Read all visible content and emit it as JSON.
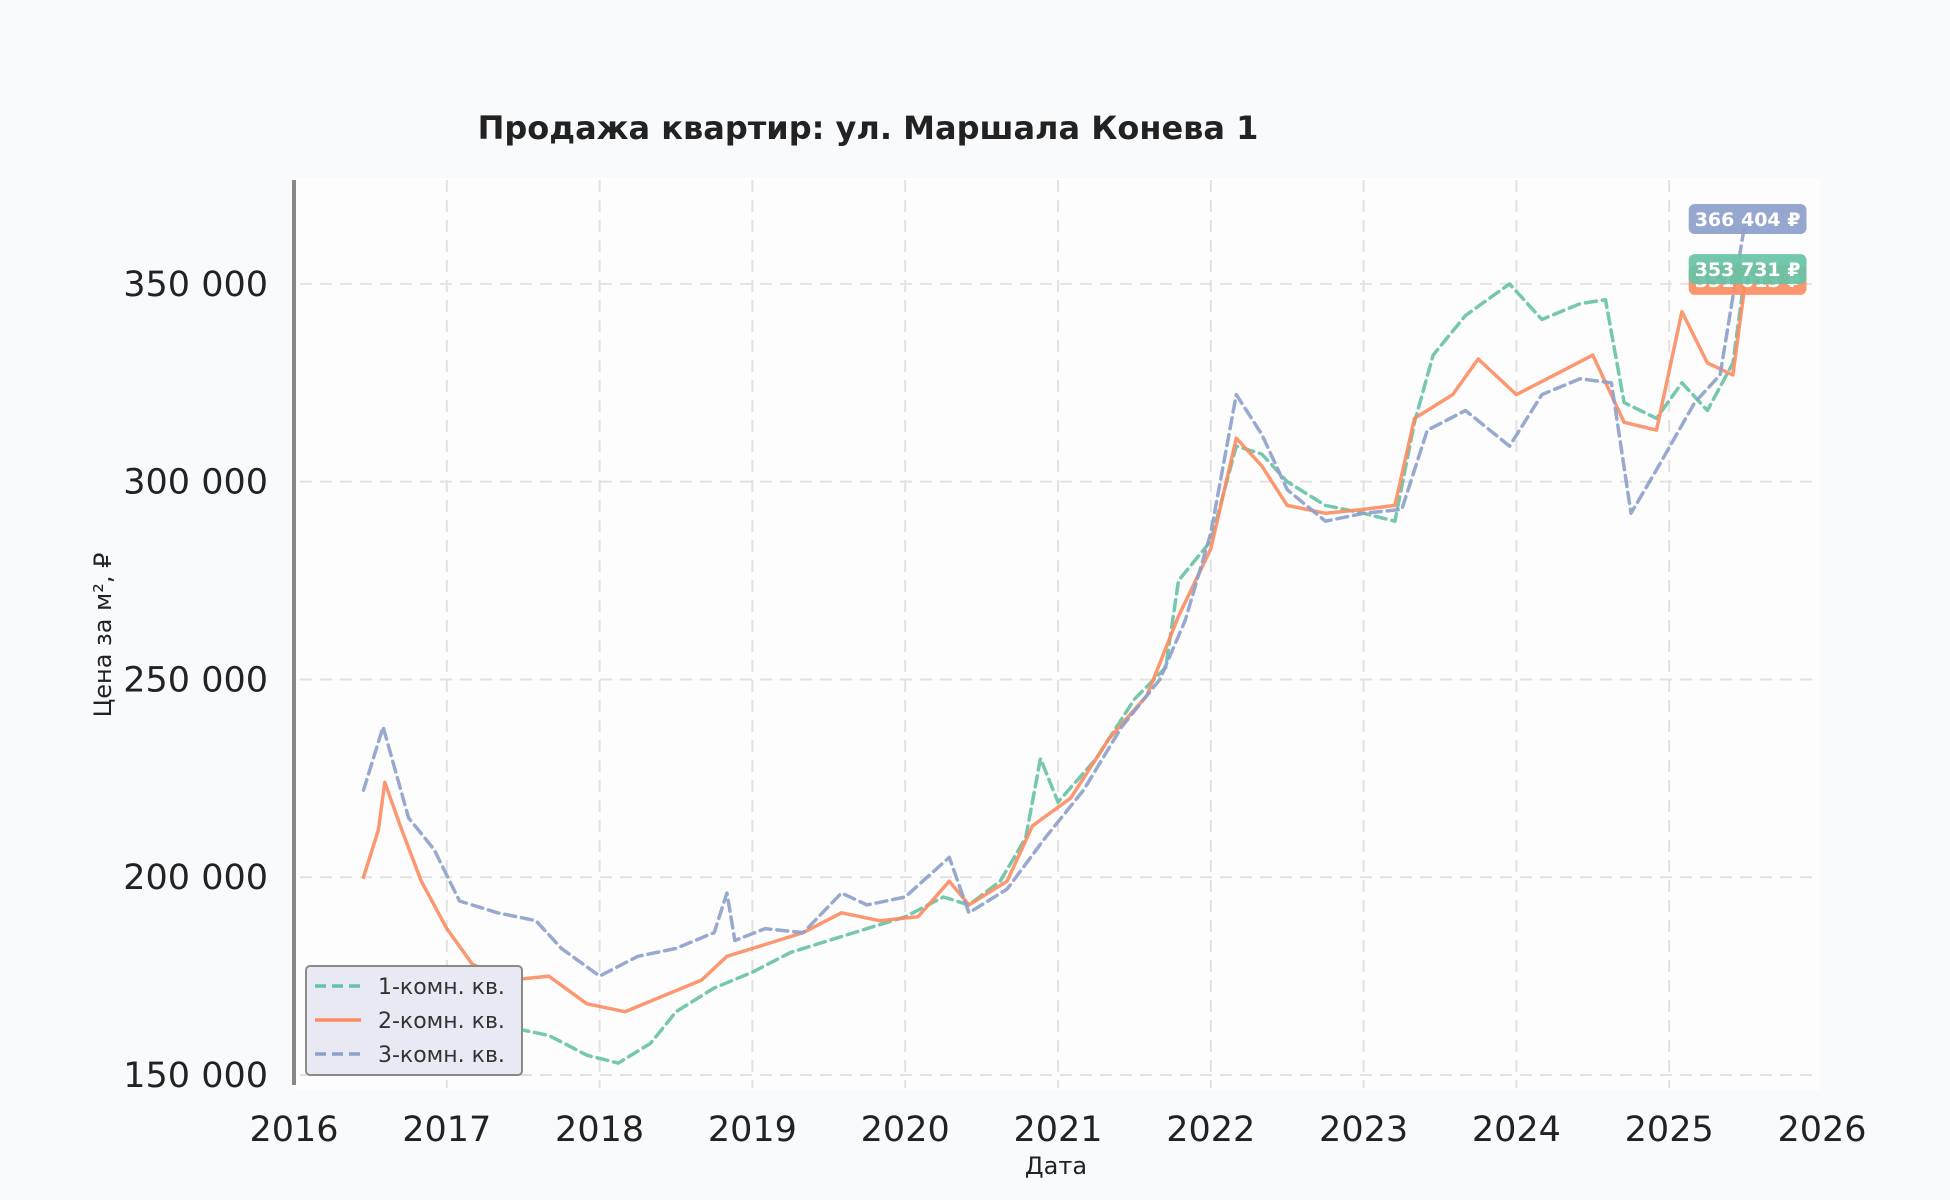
{
  "chart_data": {
    "type": "line",
    "title": "Продажа квартир: ул. Маршала Конева 1",
    "xlabel": "Дата",
    "ylabel": "Цена за м², ₽",
    "x_ticks": [
      "2016",
      "2017",
      "2018",
      "2019",
      "2020",
      "2021",
      "2022",
      "2023",
      "2024",
      "2025",
      "2026"
    ],
    "y_ticks": [
      "150 000",
      "200 000",
      "250 000",
      "300 000",
      "350 000"
    ],
    "x_range": [
      2016.0,
      2026.0
    ],
    "ylim": [
      143000,
      378000
    ],
    "grid": true,
    "legend_position": "lower-left",
    "series": [
      {
        "name": "1-комн. кв.",
        "color": "#66c2a5",
        "dash": "dashed",
        "end_label": "353 731 ₽",
        "points": [
          [
            "2016-06-15",
            174000
          ],
          [
            "2016-09-01",
            176000
          ],
          [
            "2016-12-01",
            171000
          ],
          [
            "2017-03-01",
            164000
          ],
          [
            "2017-06-01",
            162000
          ],
          [
            "2017-09-01",
            160000
          ],
          [
            "2017-12-01",
            155000
          ],
          [
            "2018-02-15",
            153000
          ],
          [
            "2018-05-01",
            158000
          ],
          [
            "2018-07-01",
            166000
          ],
          [
            "2018-10-01",
            172000
          ],
          [
            "2019-01-01",
            176000
          ],
          [
            "2019-04-01",
            181000
          ],
          [
            "2019-07-01",
            184000
          ],
          [
            "2019-10-01",
            187000
          ],
          [
            "2020-01-01",
            190000
          ],
          [
            "2020-04-01",
            195000
          ],
          [
            "2020-06-01",
            193000
          ],
          [
            "2020-08-15",
            199000
          ],
          [
            "2020-10-15",
            210000
          ],
          [
            "2020-11-20",
            230000
          ],
          [
            "2021-01-01",
            219000
          ],
          [
            "2021-04-01",
            230000
          ],
          [
            "2021-07-01",
            245000
          ],
          [
            "2021-09-15",
            253000
          ],
          [
            "2021-10-15",
            275000
          ],
          [
            "2022-01-01",
            285000
          ],
          [
            "2022-03-01",
            309000
          ],
          [
            "2022-05-01",
            307000
          ],
          [
            "2022-07-01",
            300000
          ],
          [
            "2022-10-01",
            294000
          ],
          [
            "2023-01-01",
            292000
          ],
          [
            "2023-03-15",
            290000
          ],
          [
            "2023-05-01",
            315000
          ],
          [
            "2023-06-15",
            332000
          ],
          [
            "2023-09-01",
            342000
          ],
          [
            "2023-12-15",
            350000
          ],
          [
            "2024-03-01",
            341000
          ],
          [
            "2024-06-01",
            345000
          ],
          [
            "2024-08-01",
            346000
          ],
          [
            "2024-09-15",
            320000
          ],
          [
            "2024-12-01",
            316000
          ],
          [
            "2025-02-01",
            325000
          ],
          [
            "2025-04-01",
            318000
          ],
          [
            "2025-06-01",
            330000
          ],
          [
            "2025-07-01",
            353731
          ]
        ]
      },
      {
        "name": "2-комн. кв.",
        "color": "#fc8d62",
        "dash": "solid",
        "end_label": "351 013 ₽",
        "points": [
          [
            "2016-06-15",
            200000
          ],
          [
            "2016-07-20",
            212000
          ],
          [
            "2016-08-05",
            224000
          ],
          [
            "2016-09-15",
            212000
          ],
          [
            "2016-11-01",
            199000
          ],
          [
            "2017-01-01",
            187000
          ],
          [
            "2017-03-01",
            178000
          ],
          [
            "2017-06-01",
            174000
          ],
          [
            "2017-09-01",
            175000
          ],
          [
            "2017-12-01",
            168000
          ],
          [
            "2018-03-01",
            166000
          ],
          [
            "2018-06-01",
            170000
          ],
          [
            "2018-09-01",
            174000
          ],
          [
            "2018-11-01",
            180000
          ],
          [
            "2019-02-01",
            183000
          ],
          [
            "2019-05-01",
            186000
          ],
          [
            "2019-08-01",
            191000
          ],
          [
            "2019-11-01",
            189000
          ],
          [
            "2020-02-01",
            190000
          ],
          [
            "2020-04-15",
            199000
          ],
          [
            "2020-06-01",
            193000
          ],
          [
            "2020-09-01",
            199000
          ],
          [
            "2020-11-01",
            213000
          ],
          [
            "2021-02-01",
            220000
          ],
          [
            "2021-05-01",
            235000
          ],
          [
            "2021-08-01",
            246000
          ],
          [
            "2021-10-15",
            266000
          ],
          [
            "2022-01-01",
            283000
          ],
          [
            "2022-03-01",
            311000
          ],
          [
            "2022-05-01",
            304000
          ],
          [
            "2022-07-01",
            294000
          ],
          [
            "2022-10-01",
            292000
          ],
          [
            "2023-01-01",
            293000
          ],
          [
            "2023-03-15",
            294000
          ],
          [
            "2023-05-01",
            316000
          ],
          [
            "2023-08-01",
            322000
          ],
          [
            "2023-10-01",
            331000
          ],
          [
            "2024-01-01",
            322000
          ],
          [
            "2024-04-01",
            327000
          ],
          [
            "2024-07-01",
            332000
          ],
          [
            "2024-09-15",
            315000
          ],
          [
            "2024-12-01",
            313000
          ],
          [
            "2025-02-01",
            343000
          ],
          [
            "2025-04-01",
            330000
          ],
          [
            "2025-06-01",
            327000
          ],
          [
            "2025-07-01",
            351013
          ]
        ]
      },
      {
        "name": "3-комн. кв.",
        "color": "#8da0cb",
        "dash": "dashed",
        "end_label": "366 404 ₽",
        "points": [
          [
            "2016-06-15",
            222000
          ],
          [
            "2016-08-01",
            238000
          ],
          [
            "2016-10-01",
            215000
          ],
          [
            "2016-12-01",
            207000
          ],
          [
            "2017-02-01",
            194000
          ],
          [
            "2017-05-01",
            191000
          ],
          [
            "2017-08-01",
            189000
          ],
          [
            "2017-10-01",
            182000
          ],
          [
            "2018-01-01",
            175000
          ],
          [
            "2018-04-01",
            180000
          ],
          [
            "2018-07-01",
            182000
          ],
          [
            "2018-10-01",
            186000
          ],
          [
            "2018-11-01",
            196000
          ],
          [
            "2018-11-20",
            184000
          ],
          [
            "2019-02-01",
            187000
          ],
          [
            "2019-05-01",
            186000
          ],
          [
            "2019-08-01",
            196000
          ],
          [
            "2019-10-01",
            193000
          ],
          [
            "2020-01-01",
            195000
          ],
          [
            "2020-04-15",
            205000
          ],
          [
            "2020-06-01",
            191000
          ],
          [
            "2020-09-01",
            197000
          ],
          [
            "2020-12-01",
            210000
          ],
          [
            "2021-03-01",
            222000
          ],
          [
            "2021-06-01",
            238000
          ],
          [
            "2021-09-01",
            250000
          ],
          [
            "2021-11-01",
            265000
          ],
          [
            "2022-01-01",
            287000
          ],
          [
            "2022-03-01",
            322000
          ],
          [
            "2022-05-01",
            312000
          ],
          [
            "2022-07-01",
            298000
          ],
          [
            "2022-10-01",
            290000
          ],
          [
            "2023-01-01",
            292000
          ],
          [
            "2023-04-01",
            293000
          ],
          [
            "2023-06-01",
            313000
          ],
          [
            "2023-09-01",
            318000
          ],
          [
            "2023-12-15",
            309000
          ],
          [
            "2024-03-01",
            322000
          ],
          [
            "2024-06-01",
            326000
          ],
          [
            "2024-08-15",
            325000
          ],
          [
            "2024-10-01",
            292000
          ],
          [
            "2024-12-01",
            303000
          ],
          [
            "2025-03-01",
            320000
          ],
          [
            "2025-05-01",
            327000
          ],
          [
            "2025-07-01",
            366404
          ]
        ]
      }
    ]
  }
}
